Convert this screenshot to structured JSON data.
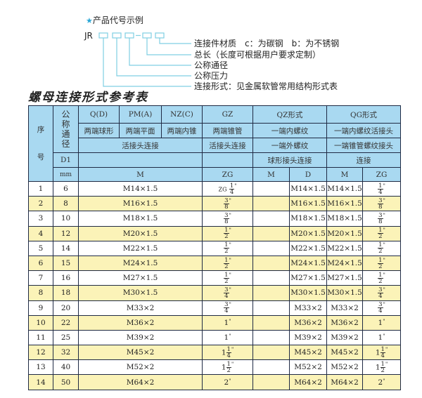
{
  "example": {
    "title": "产品代号示例",
    "star_icon": "star",
    "prefix": "JR",
    "legend": [
      "连接件材质　c：为碳钢　b：为不锈钢",
      "总长（长度可根据用户要求定制）",
      "公称通径",
      "公称压力",
      "连接形式：见金属软管常用结构形式表"
    ],
    "accent": "#7fcfe3"
  },
  "table_title": "螺母连接形式参考表",
  "header": {
    "seq_top": "序",
    "seq_bottom": "号",
    "dn": "公称通径",
    "d1": "D1",
    "mm": "mm",
    "qd": "Q(D)",
    "pm": "PM(A)",
    "nz": "NZ(C)",
    "gz": "GZ",
    "qz": "QZ形式",
    "qg": "QG形式",
    "qd_desc": "两端球形",
    "pm_desc": "两端平面",
    "nz_desc": "两端内锥",
    "gz_desc": "两端锥管",
    "qz_desc1": "一端内螺纹",
    "qg_desc1": "一端内螺纹活接头",
    "union1": "活接头连接",
    "union2": "活接头连接",
    "qz_desc2": "一端外螺纹",
    "qg_desc2": "一端锥管螺纹接头",
    "qz_desc3": "球形接头连接",
    "qg_desc3": "连接",
    "m1": "M",
    "zg1": "ZG",
    "m2": "M",
    "d": "D",
    "m3": "M",
    "zg2": "ZG"
  },
  "colors": {
    "header_bg": "#a9d9f1",
    "alt_row": "#fbf3b8",
    "border": "#1f2a44"
  },
  "rows": [
    {
      "no": "1",
      "dn": "6",
      "m": "M14×1.5",
      "gz": {
        "pre": "ZG",
        "whole": "",
        "num": "1",
        "den": "4"
      },
      "qz_m": "",
      "qz_d": "M14×1.5",
      "qg_m": "M14×1.5",
      "qg_zg": {
        "whole": "",
        "num": "1",
        "den": "4"
      }
    },
    {
      "no": "2",
      "dn": "8",
      "m": "M16×1.5",
      "gz": {
        "pre": "",
        "whole": "",
        "num": "3",
        "den": "8"
      },
      "qz_m": "",
      "qz_d": "M16×1.5",
      "qg_m": "M16×1.5",
      "qg_zg": {
        "whole": "",
        "num": "3",
        "den": "8"
      }
    },
    {
      "no": "3",
      "dn": "10",
      "m": "M18×1.5",
      "gz": {
        "pre": "",
        "whole": "",
        "num": "3",
        "den": "8"
      },
      "qz_m": "",
      "qz_d": "M18×1.5",
      "qg_m": "M18×1.5",
      "qg_zg": {
        "whole": "",
        "num": "3",
        "den": "8"
      }
    },
    {
      "no": "4",
      "dn": "12",
      "m": "M20×1.5",
      "gz": {
        "pre": "",
        "whole": "",
        "num": "1",
        "den": "2"
      },
      "qz_m": "",
      "qz_d": "M20×1.5",
      "qg_m": "M20×1.5",
      "qg_zg": {
        "whole": "",
        "num": "1",
        "den": "2"
      }
    },
    {
      "no": "5",
      "dn": "14",
      "m": "M22×1.5",
      "gz": {
        "pre": "",
        "whole": "",
        "num": "1",
        "den": "2"
      },
      "qz_m": "",
      "qz_d": "M22×1.5",
      "qg_m": "M22×1.5",
      "qg_zg": {
        "whole": "",
        "num": "1",
        "den": "2"
      }
    },
    {
      "no": "6",
      "dn": "15",
      "m": "M24×1.5",
      "gz": {
        "pre": "",
        "whole": "",
        "num": "1",
        "den": "2"
      },
      "qz_m": "",
      "qz_d": "M24×1.5",
      "qg_m": "M24×1.5",
      "qg_zg": {
        "whole": "",
        "num": "1",
        "den": "2"
      }
    },
    {
      "no": "7",
      "dn": "16",
      "m": "M27×1.5",
      "gz": {
        "pre": "",
        "whole": "",
        "num": "1",
        "den": "2"
      },
      "qz_m": "",
      "qz_d": "M27×1.5",
      "qg_m": "M27×1.5",
      "qg_zg": {
        "whole": "",
        "num": "1",
        "den": "2"
      }
    },
    {
      "no": "8",
      "dn": "18",
      "m": "M30×1.5",
      "gz": {
        "pre": "",
        "whole": "",
        "num": "3",
        "den": "4"
      },
      "qz_m": "",
      "qz_d": "M30×1.5",
      "qg_m": "M30×1.5",
      "qg_zg": {
        "whole": "",
        "num": "3",
        "den": "4"
      }
    },
    {
      "no": "9",
      "dn": "20",
      "m": "M33×2",
      "gz": {
        "pre": "",
        "whole": "",
        "num": "3",
        "den": "4"
      },
      "qz_m": "",
      "qz_d": "M33×2",
      "qg_m": "M33×2",
      "qg_zg": {
        "whole": "",
        "num": "3",
        "den": "4"
      }
    },
    {
      "no": "10",
      "dn": "22",
      "m": "M36×2",
      "gz": {
        "pre": "",
        "whole": "1",
        "num": "",
        "den": ""
      },
      "qz_m": "",
      "qz_d": "M36×2",
      "qg_m": "M36×2",
      "qg_zg": {
        "whole": "1",
        "num": "",
        "den": ""
      }
    },
    {
      "no": "11",
      "dn": "25",
      "m": "M39×2",
      "gz": {
        "pre": "",
        "whole": "1",
        "num": "",
        "den": ""
      },
      "qz_m": "",
      "qz_d": "M39×2",
      "qg_m": "M39×2",
      "qg_zg": {
        "whole": "1",
        "num": "",
        "den": ""
      }
    },
    {
      "no": "12",
      "dn": "32",
      "m": "M45×2",
      "gz": {
        "pre": "",
        "whole": "1",
        "num": "1",
        "den": "4"
      },
      "qz_m": "",
      "qz_d": "M45×2",
      "qg_m": "M45×2",
      "qg_zg": {
        "whole": "1",
        "num": "1",
        "den": "4"
      }
    },
    {
      "no": "13",
      "dn": "40",
      "m": "M52×2",
      "gz": {
        "pre": "",
        "whole": "1",
        "num": "1",
        "den": "2"
      },
      "qz_m": "",
      "qz_d": "M52×2",
      "qg_m": "M52×2",
      "qg_zg": {
        "whole": "1",
        "num": "1",
        "den": "2"
      }
    },
    {
      "no": "14",
      "dn": "50",
      "m": "M64×2",
      "gz": {
        "pre": "",
        "whole": "2",
        "num": "",
        "den": ""
      },
      "qz_m": "",
      "qz_d": "M64×2",
      "qg_m": "M64×2",
      "qg_zg": {
        "whole": "2",
        "num": "",
        "den": ""
      }
    }
  ],
  "inch_mark": "\""
}
